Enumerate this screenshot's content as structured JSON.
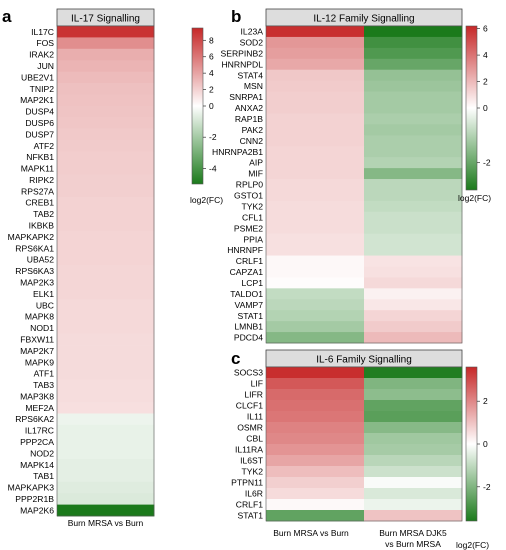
{
  "panels": [
    {
      "letter": "a",
      "title": "IL-17 Signalling",
      "genes": [
        "IL17C",
        "FOS",
        "IRAK2",
        "JUN",
        "UBE2V1",
        "TNIP2",
        "MAP2K1",
        "DUSP4",
        "DUSP6",
        "DUSP7",
        "ATF2",
        "NFKB1",
        "MAPK11",
        "RIPK2",
        "RPS27A",
        "CREB1",
        "TAB2",
        "IKBKB",
        "MAPKAPK2",
        "RPS6KA1",
        "UBA52",
        "RPS6KA3",
        "MAP2K3",
        "ELK1",
        "UBC",
        "MAPK8",
        "NOD1",
        "FBXW11",
        "MAP2K7",
        "MAPK9",
        "ATF1",
        "TAB3",
        "MAP3K8",
        "MEF2A",
        "RPS6KA2",
        "IL17RC",
        "PPP2CA",
        "NOD2",
        "MAPK14",
        "TAB1",
        "MAPKAPK3",
        "PPP2R1B",
        "MAP2K6"
      ],
      "columns": [
        "Burn MRSA vs Burn"
      ],
      "colorbar": {
        "ticks": [
          8,
          6,
          4,
          2,
          0,
          -2,
          -4
        ],
        "range": [
          -5,
          9.5
        ],
        "label": "log2(FC)"
      }
    },
    {
      "letter": "b",
      "title": "IL-12 Family Signalling",
      "genes": [
        "IL23A",
        "SOD2",
        "SERPINB2",
        "HNRNPDL",
        "STAT4",
        "MSN",
        "SNRPA1",
        "ANXA2",
        "RAP1B",
        "PAK2",
        "CNN2",
        "HNRNPA2B1",
        "AIP",
        "MIF",
        "RPLP0",
        "GSTO1",
        "TYK2",
        "CFL1",
        "PSME2",
        "PPIA",
        "HNRNPF",
        "CRLF1",
        "CAPZA1",
        "LCP1",
        "TALDO1",
        "VAMP7",
        "STAT1",
        "LMNB1",
        "PDCD4"
      ],
      "columns": [
        "Burn MRSA vs Burn",
        "Burn MRSA DJK5 vs Burn MRSA"
      ],
      "colorbar": {
        "ticks": [
          6,
          4,
          2,
          0,
          -2
        ],
        "range": [
          -3,
          6.2
        ],
        "label": "log2(FC)"
      }
    },
    {
      "letter": "c",
      "title": "IL-6 Family Signalling",
      "genes": [
        "SOCS3",
        "LIF",
        "LIFR",
        "CLCF1",
        "IL11",
        "OSMR",
        "CBL",
        "IL11RA",
        "IL6ST",
        "TYK2",
        "PTPN11",
        "IL6R",
        "CRLF1",
        "STAT1"
      ],
      "columns": [
        "Burn MRSA vs Burn",
        "Burn MRSA DJK5 vs Burn MRSA"
      ],
      "column_labels": [
        [
          "Burn MRSA vs Burn"
        ],
        [
          "Burn MRSA DJK5",
          "vs Burn MRSA"
        ]
      ],
      "colorbar": {
        "ticks": [
          2,
          0,
          -2
        ],
        "range": [
          -3.6,
          3.6
        ],
        "label": "log2(FC)"
      }
    }
  ],
  "chart_data": [
    {
      "type": "heatmap",
      "title": "IL-17 Signalling",
      "rows": [
        "IL17C",
        "FOS",
        "IRAK2",
        "JUN",
        "UBE2V1",
        "TNIP2",
        "MAP2K1",
        "DUSP4",
        "DUSP6",
        "DUSP7",
        "ATF2",
        "NFKB1",
        "MAPK11",
        "RIPK2",
        "RPS27A",
        "CREB1",
        "TAB2",
        "IKBKB",
        "MAPKAPK2",
        "RPS6KA1",
        "UBA52",
        "RPS6KA3",
        "MAP2K3",
        "ELK1",
        "UBC",
        "MAPK8",
        "NOD1",
        "FBXW11",
        "MAP2K7",
        "MAPK9",
        "ATF1",
        "TAB3",
        "MAP3K8",
        "MEF2A",
        "RPS6KA2",
        "IL17RC",
        "PPP2CA",
        "NOD2",
        "MAPK14",
        "TAB1",
        "MAPKAPK3",
        "PPP2R1B",
        "MAP2K6"
      ],
      "columns": [
        "Burn MRSA vs Burn"
      ],
      "values": [
        [
          9.0
        ],
        [
          5.0
        ],
        [
          3.6
        ],
        [
          3.3
        ],
        [
          3.0
        ],
        [
          2.8
        ],
        [
          2.7
        ],
        [
          2.6
        ],
        [
          2.5
        ],
        [
          2.4
        ],
        [
          2.3
        ],
        [
          2.2
        ],
        [
          2.2
        ],
        [
          2.1
        ],
        [
          2.1
        ],
        [
          2.0
        ],
        [
          2.0
        ],
        [
          2.0
        ],
        [
          1.9
        ],
        [
          1.9
        ],
        [
          1.9
        ],
        [
          1.8
        ],
        [
          1.8
        ],
        [
          1.8
        ],
        [
          1.7
        ],
        [
          1.7
        ],
        [
          1.7
        ],
        [
          1.6
        ],
        [
          1.6
        ],
        [
          1.6
        ],
        [
          1.6
        ],
        [
          1.5
        ],
        [
          1.5
        ],
        [
          1.4
        ],
        [
          -0.4
        ],
        [
          -0.5
        ],
        [
          -0.5
        ],
        [
          -0.5
        ],
        [
          -0.6
        ],
        [
          -0.6
        ],
        [
          -0.7
        ],
        [
          -0.8
        ],
        [
          -5.0
        ]
      ],
      "colorbar_label": "log2(FC)",
      "colorbar_range": [
        -5,
        9.5
      ]
    },
    {
      "type": "heatmap",
      "title": "IL-12 Family Signalling",
      "rows": [
        "IL23A",
        "SOD2",
        "SERPINB2",
        "HNRNPDL",
        "STAT4",
        "MSN",
        "SNRPA1",
        "ANXA2",
        "RAP1B",
        "PAK2",
        "CNN2",
        "HNRNPA2B1",
        "AIP",
        "MIF",
        "RPLP0",
        "GSTO1",
        "TYK2",
        "CFL1",
        "PSME2",
        "PPIA",
        "HNRNPF",
        "CRLF1",
        "CAPZA1",
        "LCP1",
        "TALDO1",
        "VAMP7",
        "STAT1",
        "LMNB1",
        "PDCD4"
      ],
      "columns": [
        "Burn MRSA vs Burn",
        "Burn MRSA DJK5 vs Burn MRSA"
      ],
      "values": [
        [
          6.0,
          -3.0
        ],
        [
          3.0,
          -2.5
        ],
        [
          2.8,
          -2.3
        ],
        [
          2.5,
          -2.0
        ],
        [
          1.6,
          -1.4
        ],
        [
          1.5,
          -1.3
        ],
        [
          1.4,
          -1.2
        ],
        [
          1.4,
          -1.2
        ],
        [
          1.3,
          -1.1
        ],
        [
          1.3,
          -1.2
        ],
        [
          1.3,
          -1.1
        ],
        [
          1.2,
          -1.1
        ],
        [
          1.2,
          -1.0
        ],
        [
          1.2,
          -1.6
        ],
        [
          1.1,
          -0.9
        ],
        [
          1.1,
          -0.9
        ],
        [
          1.0,
          -0.8
        ],
        [
          1.0,
          -0.7
        ],
        [
          1.0,
          -0.7
        ],
        [
          0.9,
          -0.6
        ],
        [
          0.9,
          -0.6
        ],
        [
          0.2,
          0.8
        ],
        [
          0.2,
          0.9
        ],
        [
          0.1,
          1.1
        ],
        [
          -0.8,
          0.4
        ],
        [
          -0.9,
          0.7
        ],
        [
          -1.0,
          1.2
        ],
        [
          -1.2,
          1.5
        ],
        [
          -1.6,
          2.0
        ]
      ],
      "colorbar_label": "log2(FC)",
      "colorbar_range": [
        -3,
        6.2
      ]
    },
    {
      "type": "heatmap",
      "title": "IL-6 Family Signalling",
      "rows": [
        "SOCS3",
        "LIF",
        "LIFR",
        "CLCF1",
        "IL11",
        "OSMR",
        "CBL",
        "IL11RA",
        "IL6ST",
        "TYK2",
        "PTPN11",
        "IL6R",
        "CRLF1",
        "STAT1"
      ],
      "columns": [
        "Burn MRSA vs Burn",
        "Burn MRSA DJK5 vs Burn MRSA"
      ],
      "values": [
        [
          3.5,
          -3.5
        ],
        [
          2.8,
          -2.0
        ],
        [
          2.5,
          -1.8
        ],
        [
          2.4,
          -2.5
        ],
        [
          2.3,
          -2.6
        ],
        [
          2.1,
          -1.9
        ],
        [
          2.0,
          -1.5
        ],
        [
          1.8,
          -1.4
        ],
        [
          1.5,
          -1.1
        ],
        [
          1.1,
          -0.8
        ],
        [
          0.8,
          -0.1
        ],
        [
          0.6,
          -0.6
        ],
        [
          0.1,
          -0.3
        ],
        [
          -2.5,
          1.0
        ]
      ],
      "colorbar_label": "log2(FC)",
      "colorbar_range": [
        -3.6,
        3.6
      ]
    }
  ]
}
